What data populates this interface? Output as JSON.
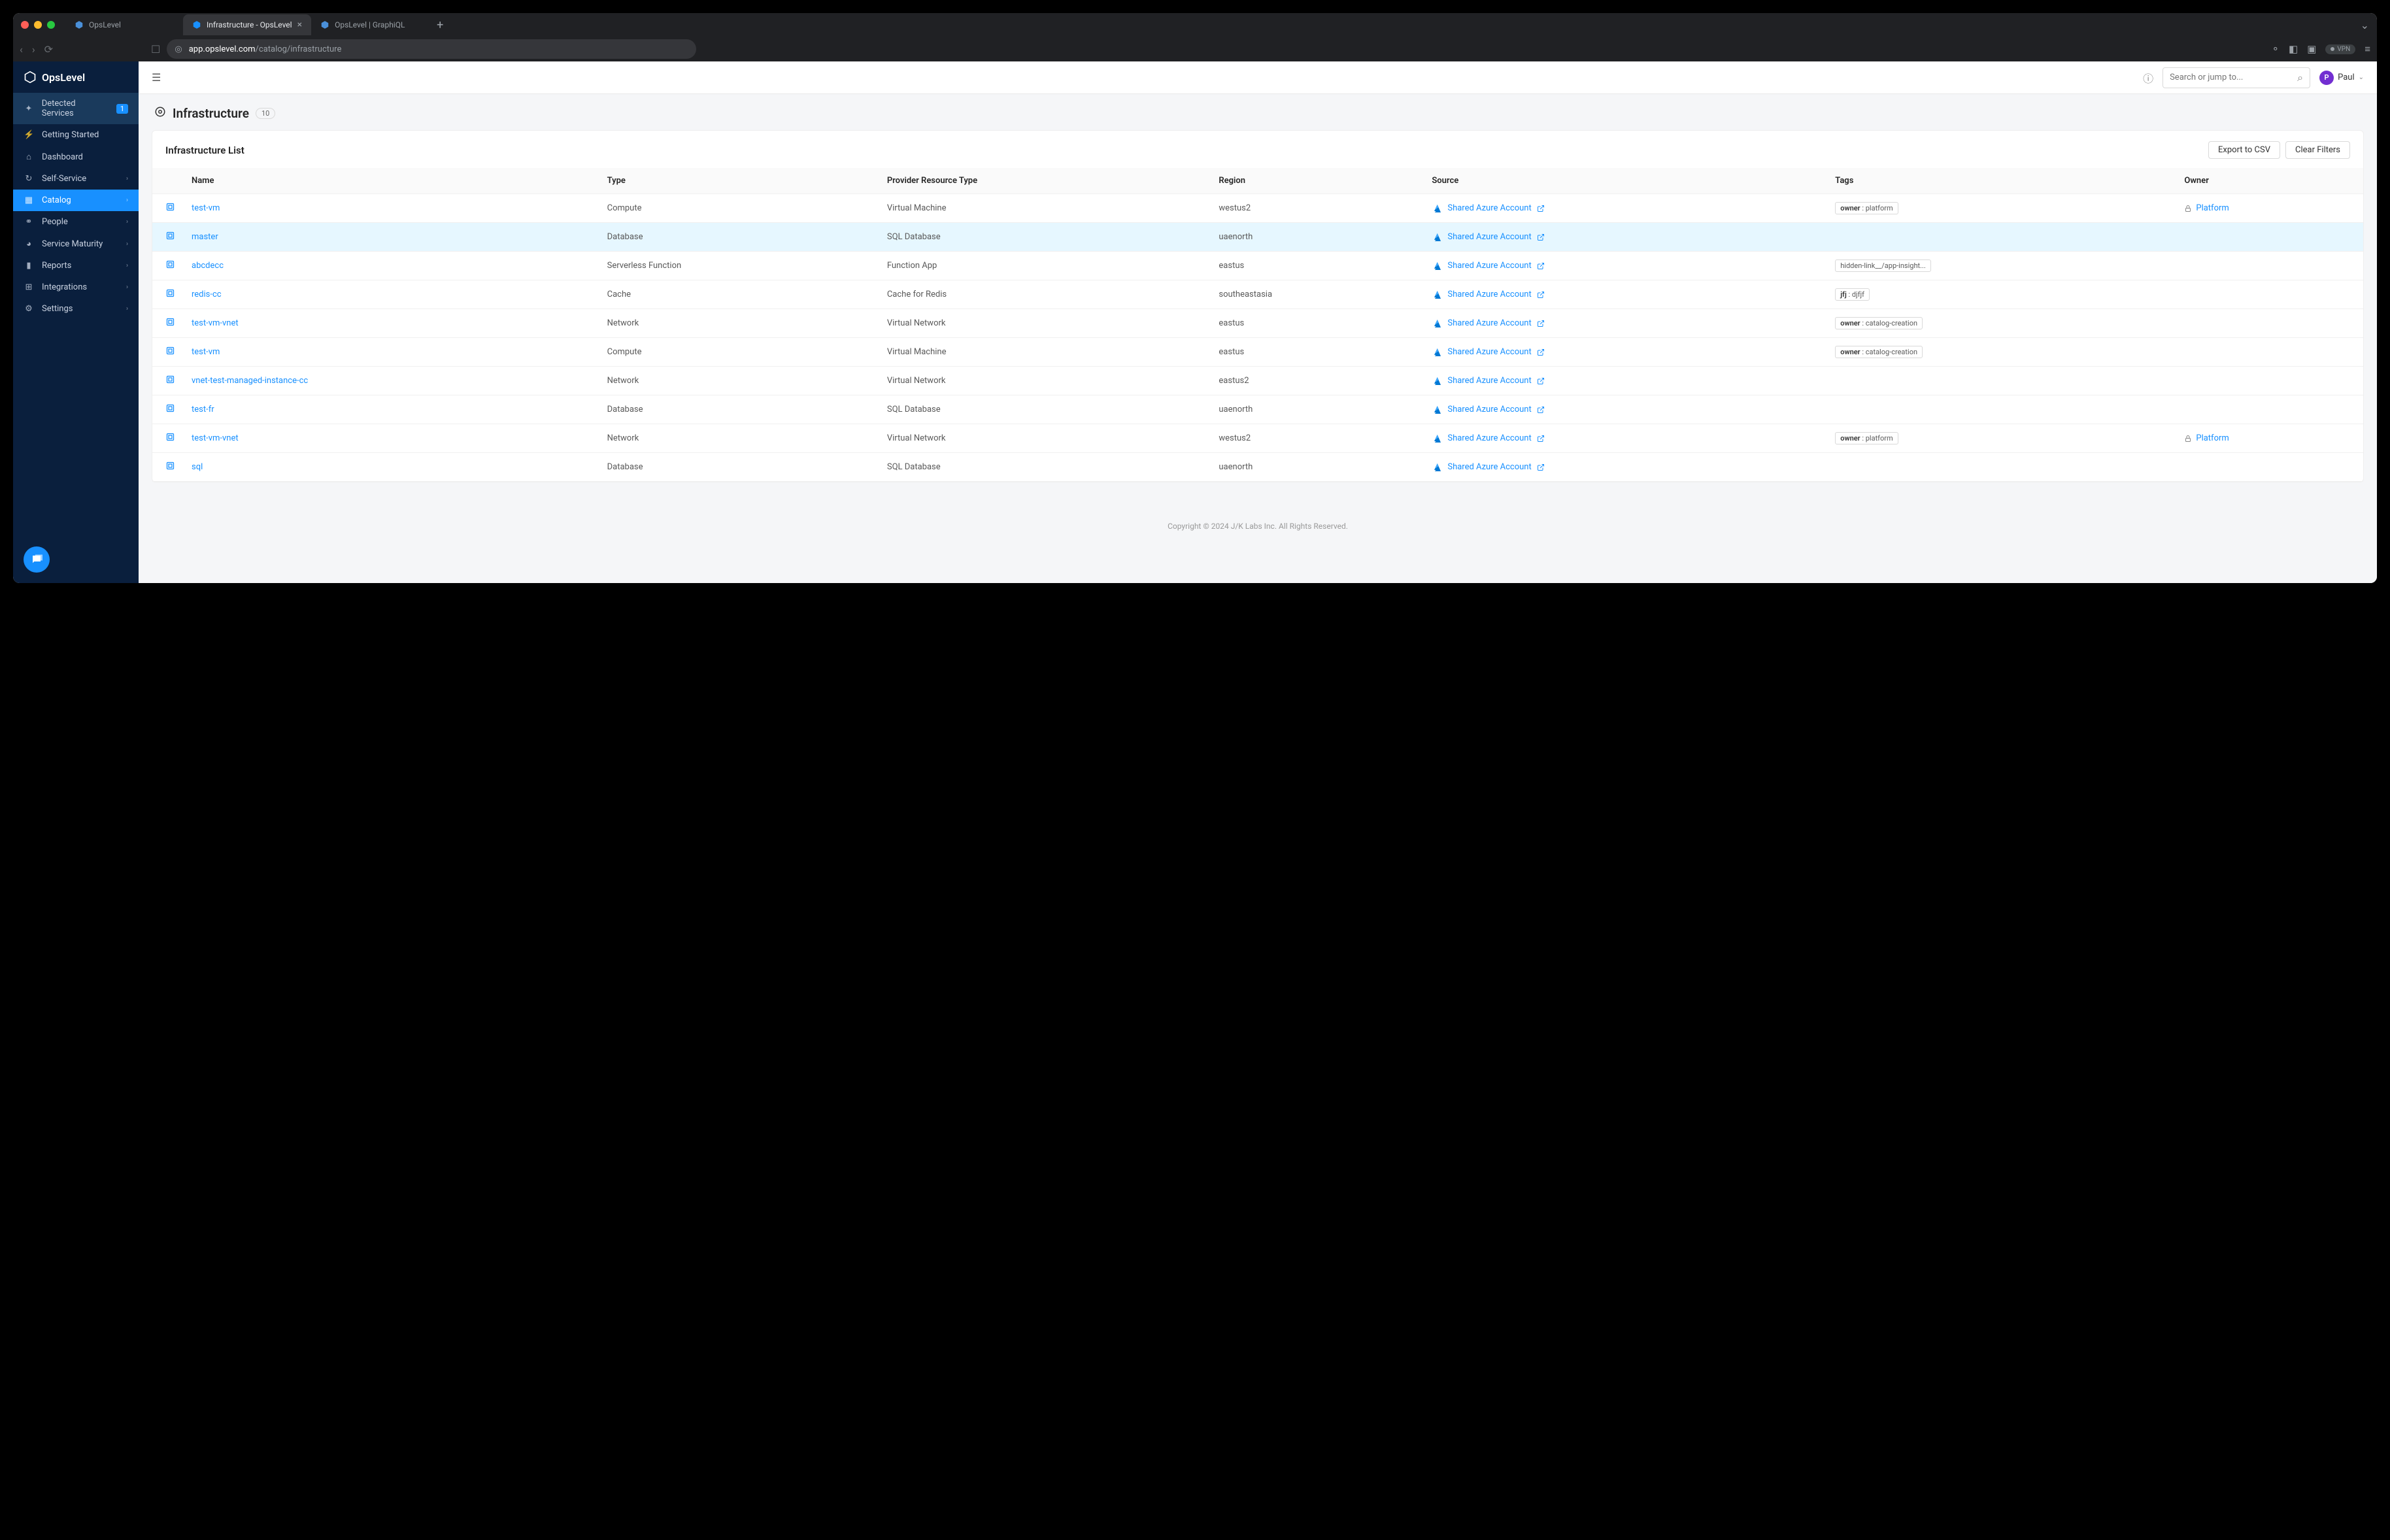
{
  "browser": {
    "tabs": [
      {
        "title": "OpsLevel",
        "active": false,
        "closable": false
      },
      {
        "title": "Infrastructure - OpsLevel",
        "active": true,
        "closable": true
      },
      {
        "title": "OpsLevel | GraphiQL",
        "active": false,
        "closable": false
      }
    ],
    "url_domain": "app.opslevel.com",
    "url_path": "/catalog/infrastructure",
    "vpn_label": "VPN"
  },
  "sidebar": {
    "product_name": "OpsLevel",
    "items": [
      {
        "label": "Detected Services",
        "icon": "✦",
        "badge": "1",
        "class": "detected"
      },
      {
        "label": "Getting Started",
        "icon": "⚡",
        "chev": false
      },
      {
        "label": "Dashboard",
        "icon": "⌂",
        "chev": false
      },
      {
        "label": "Self-Service",
        "icon": "↻",
        "chev": true
      },
      {
        "label": "Catalog",
        "icon": "▦",
        "chev": true,
        "active": true
      },
      {
        "label": "People",
        "icon": "⚭",
        "chev": true
      },
      {
        "label": "Service Maturity",
        "icon": "◕",
        "chev": true
      },
      {
        "label": "Reports",
        "icon": "▮",
        "chev": true
      },
      {
        "label": "Integrations",
        "icon": "⊞",
        "chev": true
      },
      {
        "label": "Settings",
        "icon": "⚙",
        "chev": true
      }
    ]
  },
  "topbar": {
    "search_placeholder": "Search or jump to...",
    "user_initial": "P",
    "user_name": "Paul"
  },
  "page": {
    "title": "Infrastructure",
    "count": "10",
    "list_title": "Infrastructure List",
    "export_label": "Export to CSV",
    "clear_label": "Clear Filters"
  },
  "table": {
    "columns": [
      "",
      "Name",
      "Type",
      "Provider Resource Type",
      "Region",
      "Source",
      "Tags",
      "Owner"
    ],
    "rows": [
      {
        "name": "test-vm",
        "type": "Compute",
        "prt": "Virtual Machine",
        "region": "westus2",
        "source": "Shared Azure Account",
        "tag_key": "owner",
        "tag_val": "platform",
        "owner": "Platform"
      },
      {
        "name": "master",
        "type": "Database",
        "prt": "SQL Database",
        "region": "uaenorth",
        "source": "Shared Azure Account",
        "highlight": true
      },
      {
        "name": "abcdecc",
        "type": "Serverless Function",
        "prt": "Function App",
        "region": "eastus",
        "source": "Shared Azure Account",
        "tag_raw": "hidden-link__/app-insight..."
      },
      {
        "name": "redis-cc",
        "type": "Cache",
        "prt": "Cache for Redis",
        "region": "southeastasia",
        "source": "Shared Azure Account",
        "tag_key": "jfj",
        "tag_val": "djfjf"
      },
      {
        "name": "test-vm-vnet",
        "type": "Network",
        "prt": "Virtual Network",
        "region": "eastus",
        "source": "Shared Azure Account",
        "tag_key": "owner",
        "tag_val": "catalog-creation"
      },
      {
        "name": "test-vm",
        "type": "Compute",
        "prt": "Virtual Machine",
        "region": "eastus",
        "source": "Shared Azure Account",
        "tag_key": "owner",
        "tag_val": "catalog-creation"
      },
      {
        "name": "vnet-test-managed-instance-cc",
        "type": "Network",
        "prt": "Virtual Network",
        "region": "eastus2",
        "source": "Shared Azure Account"
      },
      {
        "name": "test-fr",
        "type": "Database",
        "prt": "SQL Database",
        "region": "uaenorth",
        "source": "Shared Azure Account"
      },
      {
        "name": "test-vm-vnet",
        "type": "Network",
        "prt": "Virtual Network",
        "region": "westus2",
        "source": "Shared Azure Account",
        "tag_key": "owner",
        "tag_val": "platform",
        "owner": "Platform"
      },
      {
        "name": "sql",
        "type": "Database",
        "prt": "SQL Database",
        "region": "uaenorth",
        "source": "Shared Azure Account"
      }
    ]
  },
  "footer": "Copyright © 2024 J/K Labs Inc. All Rights Reserved.",
  "colors": {
    "sidebar_bg": "#0a1f3d",
    "accent": "#1890ff",
    "chrome_bg": "#202124",
    "page_bg": "#f5f6f8",
    "avatar_bg": "#722ed1"
  }
}
